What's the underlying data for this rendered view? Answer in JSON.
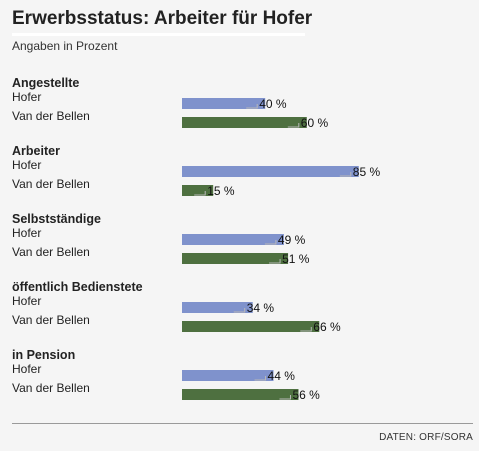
{
  "chart_data": {
    "type": "bar",
    "orientation": "horizontal",
    "title": "Erwerbsstatus: Arbeiter für Hofer",
    "subtitle": "Angaben in Prozent",
    "unit": "%",
    "xlim": [
      0,
      100
    ],
    "source": "DATEN: ORF/SORA",
    "colors": {
      "Hofer": "#7f92cc",
      "Van der Bellen": "#4e7040"
    },
    "categories": [
      "Angestellte",
      "Arbeiter",
      "Selbstständige",
      "öffentlich Bedienstete",
      "in Pension"
    ],
    "series": [
      {
        "name": "Hofer",
        "values": [
          40,
          85,
          49,
          34,
          44
        ]
      },
      {
        "name": "Van der Bellen",
        "values": [
          60,
          15,
          51,
          66,
          56
        ]
      }
    ]
  }
}
